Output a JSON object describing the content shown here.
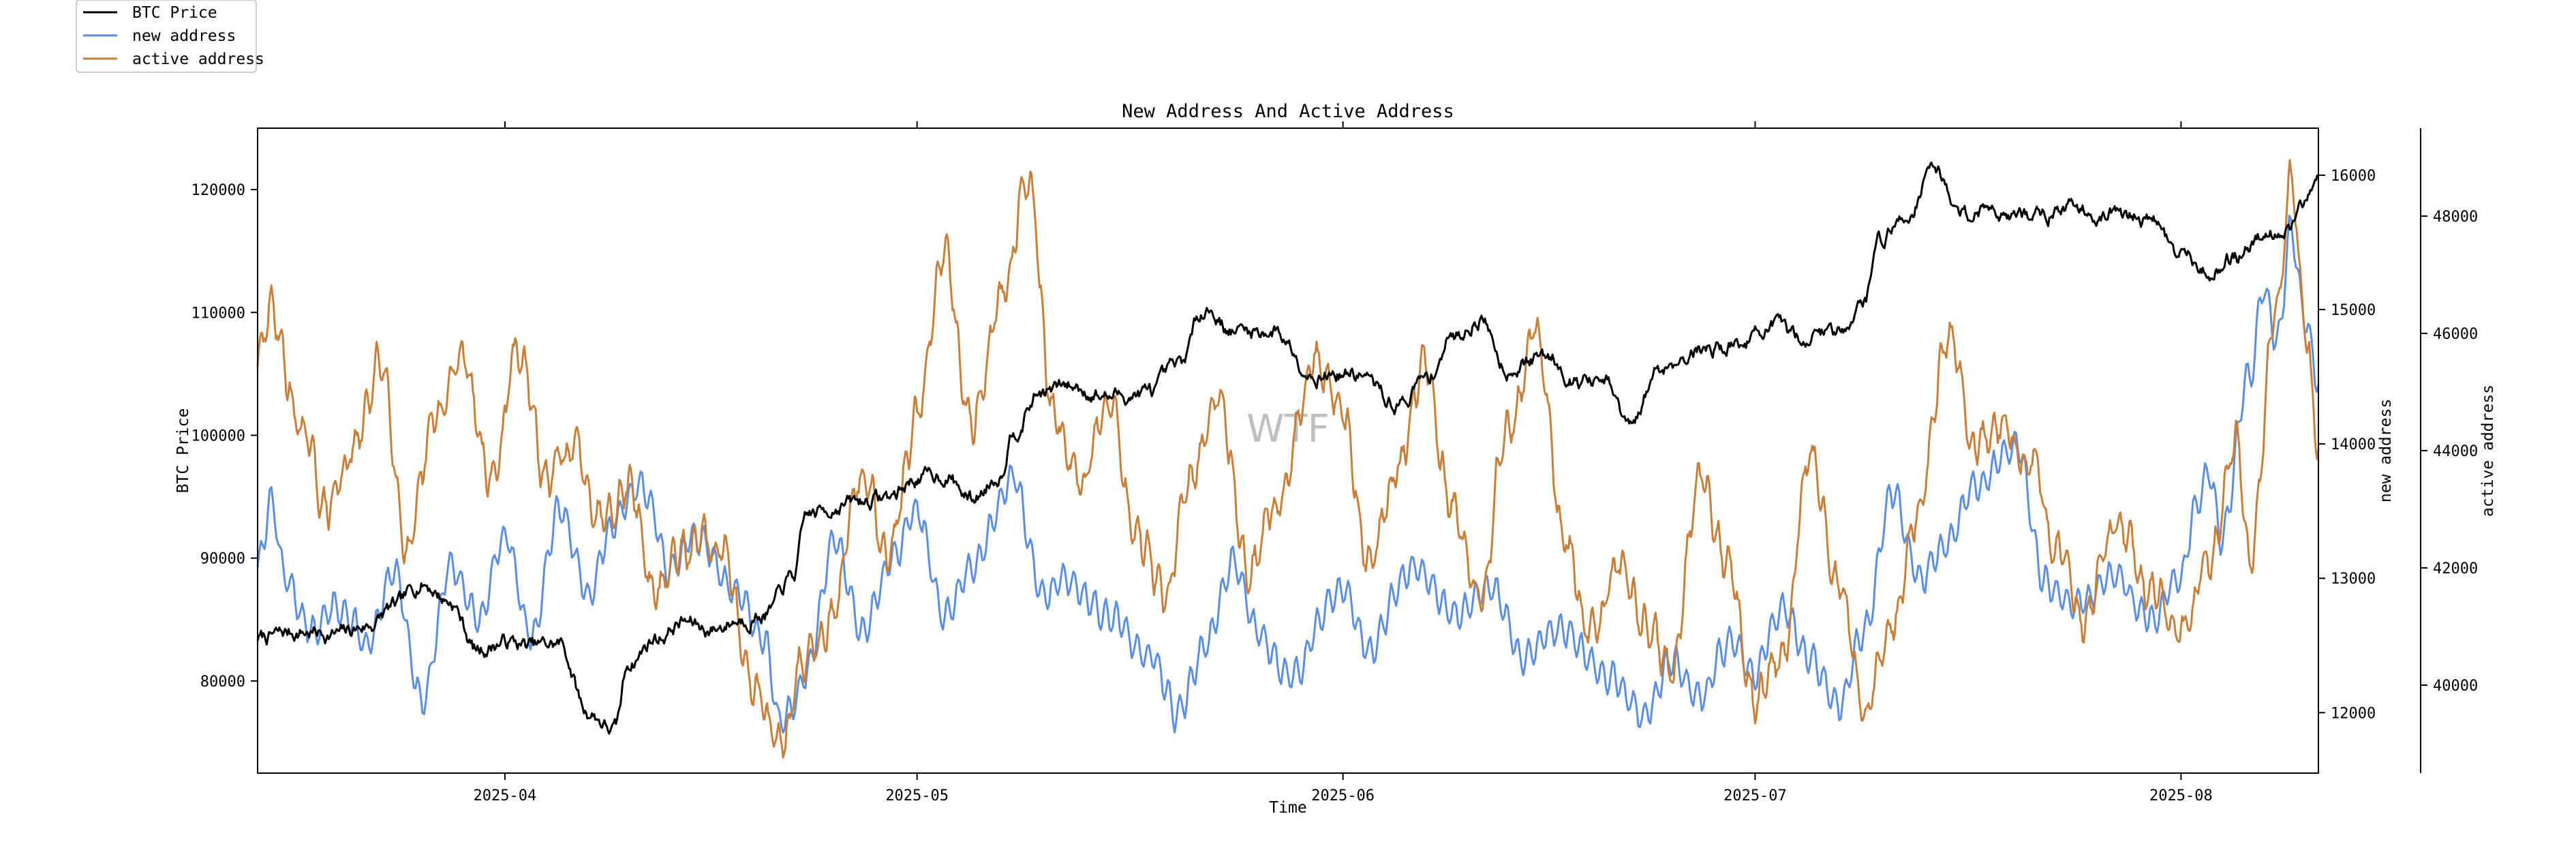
{
  "chart_data": {
    "type": "line",
    "title": "New Address And Active Address",
    "xlabel": "Time",
    "watermark": "WTF",
    "x_range": [
      "2025-03-14",
      "2025-08-11"
    ],
    "x_ticks": [
      {
        "date": "2025-04-01",
        "label": "2025-04"
      },
      {
        "date": "2025-05-01",
        "label": "2025-05"
      },
      {
        "date": "2025-06-01",
        "label": "2025-06"
      },
      {
        "date": "2025-07-01",
        "label": "2025-07"
      },
      {
        "date": "2025-08-01",
        "label": "2025-08"
      }
    ],
    "axes": {
      "left": {
        "label": "BTC Price",
        "ylim": [
          72500,
          125000
        ],
        "ticks": [
          80000,
          90000,
          100000,
          110000,
          120000
        ]
      },
      "right1": {
        "label": "new address",
        "ylim": [
          11550,
          16350
        ],
        "ticks": [
          12000,
          13000,
          14000,
          15000,
          16000
        ]
      },
      "right2": {
        "label": "active address",
        "ylim": [
          38500,
          49500
        ],
        "ticks": [
          40000,
          42000,
          44000,
          46000,
          48000
        ]
      }
    },
    "legend": {
      "location": "top-left",
      "entries": [
        {
          "label": "BTC Price",
          "color": "#000000"
        },
        {
          "label": "new address",
          "color": "#5b8ee0"
        },
        {
          "label": "active address",
          "color": "#c87f3a"
        }
      ]
    },
    "series": [
      {
        "name": "BTC Price",
        "axis": "left",
        "color": "#000000",
        "points": [
          [
            "2025-03-14",
            83500
          ],
          [
            "2025-03-17",
            84000
          ],
          [
            "2025-03-20",
            83800
          ],
          [
            "2025-03-22",
            84500
          ],
          [
            "2025-03-24",
            86000
          ],
          [
            "2025-03-26",
            88000
          ],
          [
            "2025-03-28",
            86500
          ],
          [
            "2025-03-30",
            82500
          ],
          [
            "2025-04-01",
            83200
          ],
          [
            "2025-04-03",
            82800
          ],
          [
            "2025-04-05",
            83000
          ],
          [
            "2025-04-07",
            77500
          ],
          [
            "2025-04-09",
            76000
          ],
          [
            "2025-04-10",
            81500
          ],
          [
            "2025-04-12",
            83500
          ],
          [
            "2025-04-14",
            84800
          ],
          [
            "2025-04-16",
            84200
          ],
          [
            "2025-04-18",
            85000
          ],
          [
            "2025-04-20",
            85500
          ],
          [
            "2025-04-22",
            88500
          ],
          [
            "2025-04-23",
            93500
          ],
          [
            "2025-04-26",
            94500
          ],
          [
            "2025-04-29",
            95000
          ],
          [
            "2025-05-01",
            96500
          ],
          [
            "2025-05-03",
            96800
          ],
          [
            "2025-05-05",
            94800
          ],
          [
            "2025-05-07",
            96800
          ],
          [
            "2025-05-08",
            100500
          ],
          [
            "2025-05-10",
            103500
          ],
          [
            "2025-05-12",
            104000
          ],
          [
            "2025-05-15",
            103200
          ],
          [
            "2025-05-18",
            103500
          ],
          [
            "2025-05-20",
            105500
          ],
          [
            "2025-05-22",
            110500
          ],
          [
            "2025-05-24",
            108500
          ],
          [
            "2025-05-27",
            108500
          ],
          [
            "2025-05-30",
            105000
          ],
          [
            "2025-06-02",
            105000
          ],
          [
            "2025-06-05",
            102500
          ],
          [
            "2025-06-07",
            104500
          ],
          [
            "2025-06-09",
            108000
          ],
          [
            "2025-06-11",
            109500
          ],
          [
            "2025-06-13",
            105500
          ],
          [
            "2025-06-16",
            106500
          ],
          [
            "2025-06-18",
            104500
          ],
          [
            "2025-06-20",
            104200
          ],
          [
            "2025-06-22",
            100500
          ],
          [
            "2025-06-24",
            105500
          ],
          [
            "2025-06-27",
            107000
          ],
          [
            "2025-06-30",
            107500
          ],
          [
            "2025-07-02",
            108800
          ],
          [
            "2025-07-04",
            108000
          ],
          [
            "2025-07-07",
            108500
          ],
          [
            "2025-07-09",
            111000
          ],
          [
            "2025-07-10",
            116000
          ],
          [
            "2025-07-12",
            117800
          ],
          [
            "2025-07-14",
            122000
          ],
          [
            "2025-07-16",
            118000
          ],
          [
            "2025-07-18",
            118500
          ],
          [
            "2025-07-21",
            117800
          ],
          [
            "2025-07-24",
            118500
          ],
          [
            "2025-07-27",
            118000
          ],
          [
            "2025-07-30",
            117500
          ],
          [
            "2025-08-01",
            114500
          ],
          [
            "2025-08-03",
            113500
          ],
          [
            "2025-08-05",
            114500
          ],
          [
            "2025-08-07",
            116500
          ],
          [
            "2025-08-09",
            117000
          ],
          [
            "2025-08-10",
            118500
          ],
          [
            "2025-08-11",
            121500
          ]
        ]
      },
      {
        "name": "new address",
        "axis": "right1",
        "color": "#5b8ee0",
        "points": [
          [
            "2025-03-14",
            13100
          ],
          [
            "2025-03-15",
            13600
          ],
          [
            "2025-03-16",
            13000
          ],
          [
            "2025-03-18",
            12600
          ],
          [
            "2025-03-20",
            12800
          ],
          [
            "2025-03-22",
            12500
          ],
          [
            "2025-03-24",
            13000
          ],
          [
            "2025-03-26",
            12100
          ],
          [
            "2025-03-28",
            13100
          ],
          [
            "2025-03-30",
            12700
          ],
          [
            "2025-04-01",
            13300
          ],
          [
            "2025-04-03",
            12600
          ],
          [
            "2025-04-05",
            13500
          ],
          [
            "2025-04-07",
            12900
          ],
          [
            "2025-04-09",
            13400
          ],
          [
            "2025-04-11",
            13700
          ],
          [
            "2025-04-13",
            13100
          ],
          [
            "2025-04-15",
            13300
          ],
          [
            "2025-04-18",
            12900
          ],
          [
            "2025-04-20",
            12500
          ],
          [
            "2025-04-21",
            11900
          ],
          [
            "2025-04-23",
            12300
          ],
          [
            "2025-04-25",
            13300
          ],
          [
            "2025-04-27",
            12600
          ],
          [
            "2025-04-29",
            13100
          ],
          [
            "2025-05-01",
            13500
          ],
          [
            "2025-05-03",
            12700
          ],
          [
            "2025-05-05",
            13100
          ],
          [
            "2025-05-08",
            13800
          ],
          [
            "2025-05-10",
            12900
          ],
          [
            "2025-05-12",
            13000
          ],
          [
            "2025-05-15",
            12700
          ],
          [
            "2025-05-18",
            12400
          ],
          [
            "2025-05-20",
            12000
          ],
          [
            "2025-05-22",
            12500
          ],
          [
            "2025-05-24",
            13100
          ],
          [
            "2025-05-26",
            12600
          ],
          [
            "2025-05-28",
            12300
          ],
          [
            "2025-06-01",
            12900
          ],
          [
            "2025-06-03",
            12500
          ],
          [
            "2025-06-06",
            13100
          ],
          [
            "2025-06-09",
            12700
          ],
          [
            "2025-06-12",
            12900
          ],
          [
            "2025-06-14",
            12400
          ],
          [
            "2025-06-17",
            12600
          ],
          [
            "2025-06-20",
            12300
          ],
          [
            "2025-06-23",
            12000
          ],
          [
            "2025-06-25",
            12400
          ],
          [
            "2025-06-27",
            12100
          ],
          [
            "2025-06-29",
            12500
          ],
          [
            "2025-07-01",
            12300
          ],
          [
            "2025-07-03",
            12800
          ],
          [
            "2025-07-05",
            12400
          ],
          [
            "2025-07-07",
            12000
          ],
          [
            "2025-07-09",
            12600
          ],
          [
            "2025-07-11",
            13600
          ],
          [
            "2025-07-13",
            13000
          ],
          [
            "2025-07-15",
            13300
          ],
          [
            "2025-07-17",
            13700
          ],
          [
            "2025-07-20",
            14000
          ],
          [
            "2025-07-22",
            13000
          ],
          [
            "2025-07-24",
            12800
          ],
          [
            "2025-07-27",
            13000
          ],
          [
            "2025-07-30",
            12700
          ],
          [
            "2025-08-01",
            13000
          ],
          [
            "2025-08-02",
            13500
          ],
          [
            "2025-08-03",
            13800
          ],
          [
            "2025-08-04",
            13300
          ],
          [
            "2025-08-06",
            14500
          ],
          [
            "2025-08-07",
            15200
          ],
          [
            "2025-08-08",
            14800
          ],
          [
            "2025-08-09",
            15600
          ],
          [
            "2025-08-10",
            15000
          ],
          [
            "2025-08-11",
            14500
          ]
        ]
      },
      {
        "name": "active address",
        "axis": "right2",
        "color": "#c87f3a",
        "points": [
          [
            "2025-03-14",
            45500
          ],
          [
            "2025-03-15",
            46400
          ],
          [
            "2025-03-17",
            44500
          ],
          [
            "2025-03-19",
            43000
          ],
          [
            "2025-03-21",
            44000
          ],
          [
            "2025-03-23",
            45500
          ],
          [
            "2025-03-25",
            42300
          ],
          [
            "2025-03-27",
            44500
          ],
          [
            "2025-03-29",
            45600
          ],
          [
            "2025-03-31",
            43500
          ],
          [
            "2025-04-02",
            45700
          ],
          [
            "2025-04-04",
            43500
          ],
          [
            "2025-04-06",
            44000
          ],
          [
            "2025-04-08",
            43000
          ],
          [
            "2025-04-10",
            43500
          ],
          [
            "2025-04-12",
            41500
          ],
          [
            "2025-04-14",
            42500
          ],
          [
            "2025-04-17",
            42200
          ],
          [
            "2025-04-19",
            40000
          ],
          [
            "2025-04-21",
            39000
          ],
          [
            "2025-04-23",
            40500
          ],
          [
            "2025-04-25",
            41300
          ],
          [
            "2025-04-27",
            43500
          ],
          [
            "2025-04-29",
            42400
          ],
          [
            "2025-05-01",
            44500
          ],
          [
            "2025-05-03",
            47500
          ],
          [
            "2025-05-05",
            44500
          ],
          [
            "2025-05-07",
            46500
          ],
          [
            "2025-05-09",
            48800
          ],
          [
            "2025-05-11",
            44500
          ],
          [
            "2025-05-13",
            43500
          ],
          [
            "2025-05-15",
            45000
          ],
          [
            "2025-05-17",
            42500
          ],
          [
            "2025-05-19",
            41500
          ],
          [
            "2025-05-21",
            43500
          ],
          [
            "2025-05-23",
            45000
          ],
          [
            "2025-05-25",
            42000
          ],
          [
            "2025-05-27",
            43000
          ],
          [
            "2025-05-30",
            45500
          ],
          [
            "2025-06-01",
            44500
          ],
          [
            "2025-06-03",
            42200
          ],
          [
            "2025-06-05",
            43800
          ],
          [
            "2025-06-07",
            45600
          ],
          [
            "2025-06-09",
            43000
          ],
          [
            "2025-06-11",
            41500
          ],
          [
            "2025-06-13",
            44500
          ],
          [
            "2025-06-15",
            46000
          ],
          [
            "2025-06-17",
            42600
          ],
          [
            "2025-06-19",
            40800
          ],
          [
            "2025-06-21",
            42000
          ],
          [
            "2025-06-23",
            41200
          ],
          [
            "2025-06-25",
            40200
          ],
          [
            "2025-06-27",
            43500
          ],
          [
            "2025-06-29",
            42000
          ],
          [
            "2025-07-01",
            39600
          ],
          [
            "2025-07-03",
            40500
          ],
          [
            "2025-07-05",
            44000
          ],
          [
            "2025-07-07",
            41800
          ],
          [
            "2025-07-09",
            39700
          ],
          [
            "2025-07-11",
            41000
          ],
          [
            "2025-07-13",
            43000
          ],
          [
            "2025-07-15",
            46000
          ],
          [
            "2025-07-17",
            44000
          ],
          [
            "2025-07-19",
            44500
          ],
          [
            "2025-07-21",
            43800
          ],
          [
            "2025-07-23",
            42500
          ],
          [
            "2025-07-25",
            41000
          ],
          [
            "2025-07-27",
            42800
          ],
          [
            "2025-07-30",
            41600
          ],
          [
            "2025-08-01",
            40700
          ],
          [
            "2025-08-03",
            42200
          ],
          [
            "2025-08-05",
            44200
          ],
          [
            "2025-08-06",
            42200
          ],
          [
            "2025-08-08",
            46500
          ],
          [
            "2025-08-09",
            48700
          ],
          [
            "2025-08-10",
            46000
          ],
          [
            "2025-08-11",
            44200
          ]
        ]
      }
    ]
  }
}
